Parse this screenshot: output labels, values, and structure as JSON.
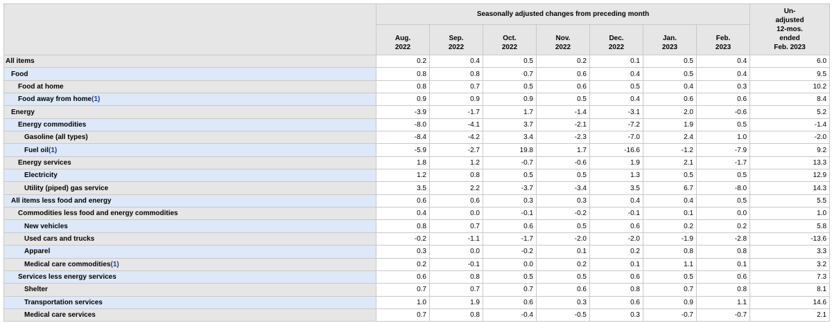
{
  "header": {
    "group_label": "Seasonally adjusted changes from preceding month",
    "months": [
      {
        "month": "Aug.",
        "year": "2022"
      },
      {
        "month": "Sep.",
        "year": "2022"
      },
      {
        "month": "Oct.",
        "year": "2022"
      },
      {
        "month": "Nov.",
        "year": "2022"
      },
      {
        "month": "Dec.",
        "year": "2022"
      },
      {
        "month": "Jan.",
        "year": "2023"
      },
      {
        "month": "Feb.",
        "year": "2023"
      }
    ],
    "unadjusted_lines": [
      "Un-",
      "adjusted",
      "12-mos.",
      "ended",
      "Feb. 2023"
    ]
  },
  "rows": [
    {
      "label": "All items",
      "level": 0,
      "footnote": "",
      "values": [
        "0.2",
        "0.4",
        "0.5",
        "0.2",
        "0.1",
        "0.5",
        "0.4"
      ],
      "unadjusted": "6.0"
    },
    {
      "label": "Food",
      "level": 1,
      "footnote": "",
      "values": [
        "0.8",
        "0.8",
        "0.7",
        "0.6",
        "0.4",
        "0.5",
        "0.4"
      ],
      "unadjusted": "9.5"
    },
    {
      "label": "Food at home",
      "level": 2,
      "footnote": "",
      "values": [
        "0.8",
        "0.7",
        "0.5",
        "0.6",
        "0.5",
        "0.4",
        "0.3"
      ],
      "unadjusted": "10.2"
    },
    {
      "label": "Food away from home",
      "level": 2,
      "footnote": "(1)",
      "values": [
        "0.9",
        "0.9",
        "0.9",
        "0.5",
        "0.4",
        "0.6",
        "0.6"
      ],
      "unadjusted": "8.4"
    },
    {
      "label": "Energy",
      "level": 1,
      "footnote": "",
      "values": [
        "-3.9",
        "-1.7",
        "1.7",
        "-1.4",
        "-3.1",
        "2.0",
        "-0.6"
      ],
      "unadjusted": "5.2"
    },
    {
      "label": "Energy commodities",
      "level": 2,
      "footnote": "",
      "values": [
        "-8.0",
        "-4.1",
        "3.7",
        "-2.1",
        "-7.2",
        "1.9",
        "0.5"
      ],
      "unadjusted": "-1.4"
    },
    {
      "label": "Gasoline (all types)",
      "level": 3,
      "footnote": "",
      "values": [
        "-8.4",
        "-4.2",
        "3.4",
        "-2.3",
        "-7.0",
        "2.4",
        "1.0"
      ],
      "unadjusted": "-2.0"
    },
    {
      "label": "Fuel oil",
      "level": 3,
      "footnote": "(1)",
      "values": [
        "-5.9",
        "-2.7",
        "19.8",
        "1.7",
        "-16.6",
        "-1.2",
        "-7.9"
      ],
      "unadjusted": "9.2"
    },
    {
      "label": "Energy services",
      "level": 2,
      "footnote": "",
      "values": [
        "1.8",
        "1.2",
        "-0.7",
        "-0.6",
        "1.9",
        "2.1",
        "-1.7"
      ],
      "unadjusted": "13.3"
    },
    {
      "label": "Electricity",
      "level": 3,
      "footnote": "",
      "values": [
        "1.2",
        "0.8",
        "0.5",
        "0.5",
        "1.3",
        "0.5",
        "0.5"
      ],
      "unadjusted": "12.9"
    },
    {
      "label": "Utility (piped) gas service",
      "level": 3,
      "footnote": "",
      "values": [
        "3.5",
        "2.2",
        "-3.7",
        "-3.4",
        "3.5",
        "6.7",
        "-8.0"
      ],
      "unadjusted": "14.3"
    },
    {
      "label": "All items less food and energy",
      "level": 1,
      "footnote": "",
      "values": [
        "0.6",
        "0.6",
        "0.3",
        "0.3",
        "0.4",
        "0.4",
        "0.5"
      ],
      "unadjusted": "5.5"
    },
    {
      "label": "Commodities less food and energy commodities",
      "level": 2,
      "footnote": "",
      "values": [
        "0.4",
        "0.0",
        "-0.1",
        "-0.2",
        "-0.1",
        "0.1",
        "0.0"
      ],
      "unadjusted": "1.0"
    },
    {
      "label": "New vehicles",
      "level": 3,
      "footnote": "",
      "values": [
        "0.8",
        "0.7",
        "0.6",
        "0.5",
        "0.6",
        "0.2",
        "0.2"
      ],
      "unadjusted": "5.8"
    },
    {
      "label": "Used cars and trucks",
      "level": 3,
      "footnote": "",
      "values": [
        "-0.2",
        "-1.1",
        "-1.7",
        "-2.0",
        "-2.0",
        "-1.9",
        "-2.8"
      ],
      "unadjusted": "-13.6"
    },
    {
      "label": "Apparel",
      "level": 3,
      "footnote": "",
      "values": [
        "0.3",
        "0.0",
        "-0.2",
        "0.1",
        "0.2",
        "0.8",
        "0.8"
      ],
      "unadjusted": "3.3"
    },
    {
      "label": "Medical care commodities",
      "level": 3,
      "footnote": "(1)",
      "values": [
        "0.2",
        "-0.1",
        "0.0",
        "0.2",
        "0.1",
        "1.1",
        "0.1"
      ],
      "unadjusted": "3.2"
    },
    {
      "label": "Services less energy services",
      "level": 2,
      "footnote": "",
      "values": [
        "0.6",
        "0.8",
        "0.5",
        "0.5",
        "0.6",
        "0.5",
        "0.6"
      ],
      "unadjusted": "7.3"
    },
    {
      "label": "Shelter",
      "level": 3,
      "footnote": "",
      "values": [
        "0.7",
        "0.7",
        "0.7",
        "0.6",
        "0.8",
        "0.7",
        "0.8"
      ],
      "unadjusted": "8.1"
    },
    {
      "label": "Transportation services",
      "level": 3,
      "footnote": "",
      "values": [
        "1.0",
        "1.9",
        "0.6",
        "0.3",
        "0.6",
        "0.9",
        "1.1"
      ],
      "unadjusted": "14.6"
    },
    {
      "label": "Medical care services",
      "level": 3,
      "footnote": "",
      "values": [
        "0.7",
        "0.8",
        "-0.4",
        "-0.5",
        "0.3",
        "-0.7",
        "-0.7"
      ],
      "unadjusted": "2.1"
    }
  ]
}
